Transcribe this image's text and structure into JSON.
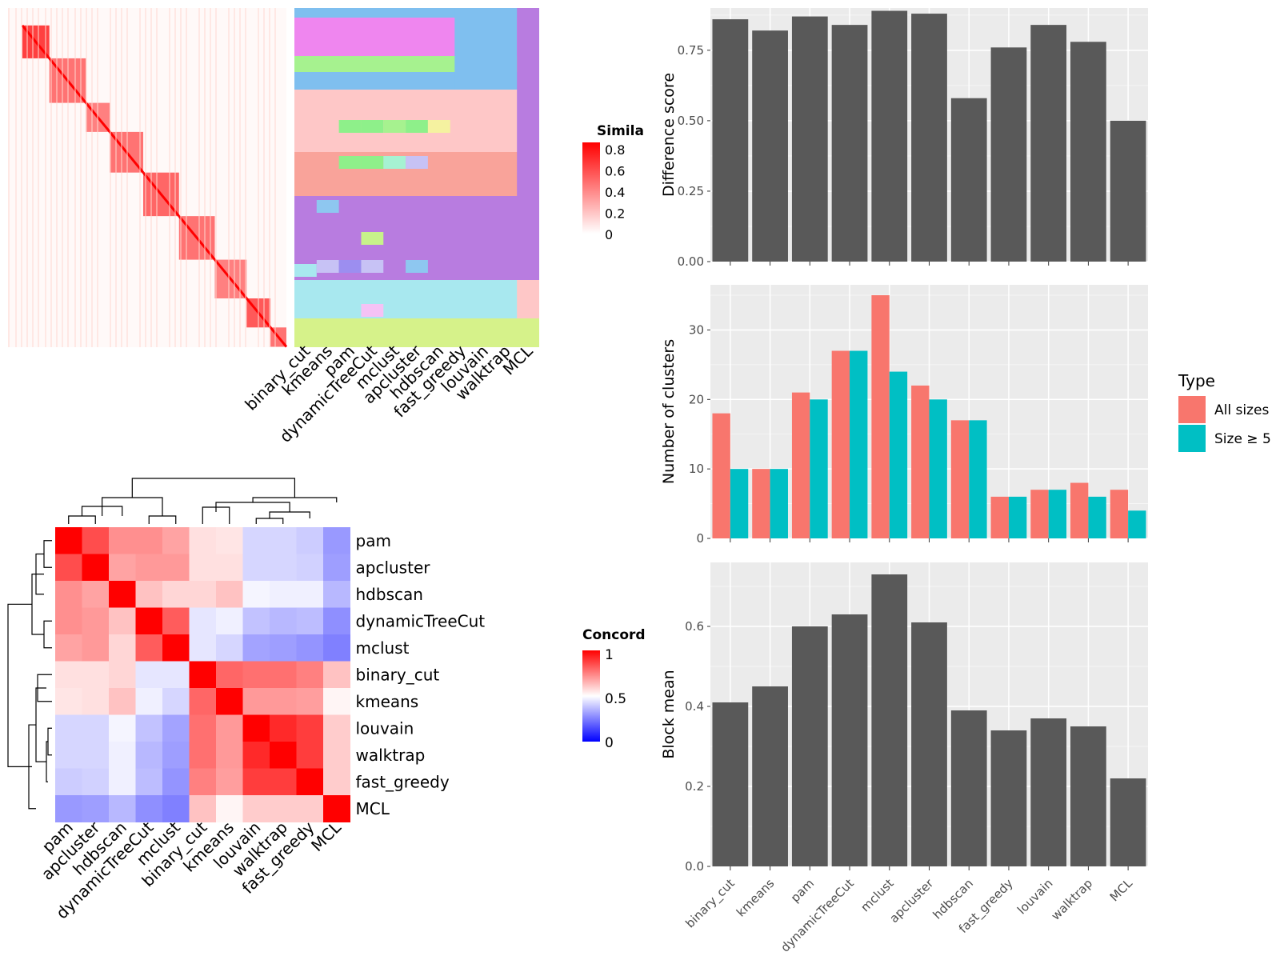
{
  "colors": {
    "bar_fill": "#595959",
    "panel_bg": "#ebebeb",
    "grid": "#ffffff",
    "all_sizes": "#f8766d",
    "size_ge_5": "#00bfc4",
    "concordance_low": "#0000ff",
    "concordance_mid": "#ffffff",
    "concordance_high": "#ff0000",
    "similarity_low": "#ffffff",
    "similarity_high": "#ff0000"
  },
  "similarity_heatmap": {
    "legend_title": "Simila",
    "legend_ticks": [
      "0.8",
      "0.6",
      "0.4",
      "0.2",
      "0"
    ],
    "method_labels": [
      "binary_cut",
      "kmeans",
      "pam",
      "dynamicTreeCut",
      "mclust",
      "apcluster",
      "hdbscan",
      "fast_greedy",
      "louvain",
      "walktrap",
      "MCL"
    ]
  },
  "concordance_heatmap": {
    "legend_title": "Concord",
    "legend_ticks": [
      "1",
      "0.5",
      "0"
    ],
    "row_labels": [
      "pam",
      "apcluster",
      "hdbscan",
      "dynamicTreeCut",
      "mclust",
      "binary_cut",
      "kmeans",
      "louvain",
      "walktrap",
      "fast_greedy",
      "MCL"
    ],
    "col_labels": [
      "pam",
      "apcluster",
      "hdbscan",
      "dynamicTreeCut",
      "mclust",
      "binary_cut",
      "kmeans",
      "louvain",
      "walktrap",
      "fast_greedy",
      "MCL"
    ]
  },
  "chart_data": [
    {
      "type": "heatmap",
      "title": "",
      "legend_title": "Concord",
      "rows": [
        "pam",
        "apcluster",
        "hdbscan",
        "dynamicTreeCut",
        "mclust",
        "binary_cut",
        "kmeans",
        "louvain",
        "walktrap",
        "fast_greedy",
        "MCL"
      ],
      "cols": [
        "pam",
        "apcluster",
        "hdbscan",
        "dynamicTreeCut",
        "mclust",
        "binary_cut",
        "kmeans",
        "louvain",
        "walktrap",
        "fast_greedy",
        "MCL"
      ],
      "values": [
        [
          1.0,
          0.85,
          0.72,
          0.72,
          0.68,
          0.56,
          0.55,
          0.42,
          0.42,
          0.4,
          0.3
        ],
        [
          0.85,
          1.0,
          0.68,
          0.7,
          0.7,
          0.56,
          0.56,
          0.42,
          0.42,
          0.41,
          0.31
        ],
        [
          0.72,
          0.68,
          1.0,
          0.62,
          0.58,
          0.58,
          0.62,
          0.48,
          0.47,
          0.47,
          0.36
        ],
        [
          0.72,
          0.7,
          0.62,
          1.0,
          0.82,
          0.45,
          0.47,
          0.38,
          0.36,
          0.37,
          0.28
        ],
        [
          0.68,
          0.7,
          0.58,
          0.82,
          1.0,
          0.45,
          0.42,
          0.32,
          0.31,
          0.29,
          0.25
        ],
        [
          0.56,
          0.56,
          0.58,
          0.45,
          0.45,
          1.0,
          0.8,
          0.78,
          0.78,
          0.75,
          0.62
        ],
        [
          0.55,
          0.56,
          0.62,
          0.47,
          0.42,
          0.8,
          1.0,
          0.7,
          0.7,
          0.69,
          0.52
        ],
        [
          0.42,
          0.42,
          0.48,
          0.38,
          0.32,
          0.78,
          0.7,
          1.0,
          0.92,
          0.88,
          0.6
        ],
        [
          0.42,
          0.42,
          0.47,
          0.36,
          0.31,
          0.78,
          0.7,
          0.92,
          1.0,
          0.88,
          0.6
        ],
        [
          0.4,
          0.41,
          0.47,
          0.37,
          0.29,
          0.75,
          0.69,
          0.88,
          0.88,
          1.0,
          0.6
        ],
        [
          0.3,
          0.31,
          0.36,
          0.28,
          0.25,
          0.62,
          0.52,
          0.6,
          0.6,
          0.6,
          1.0
        ]
      ],
      "range": [
        0,
        1
      ]
    },
    {
      "type": "bar",
      "categories": [
        "binary_cut",
        "kmeans",
        "pam",
        "dynamicTreeCut",
        "mclust",
        "apcluster",
        "hdbscan",
        "fast_greedy",
        "louvain",
        "walktrap",
        "MCL"
      ],
      "values": [
        0.86,
        0.82,
        0.87,
        0.84,
        0.89,
        0.88,
        0.58,
        0.76,
        0.84,
        0.78,
        0.5
      ],
      "xlabel": "",
      "ylabel": "Difference score",
      "ylim": [
        0,
        0.9
      ],
      "yticks": [
        "0.00",
        "0.25",
        "0.50",
        "0.75"
      ],
      "grid": true
    },
    {
      "type": "bar",
      "categories": [
        "binary_cut",
        "kmeans",
        "pam",
        "dynamicTreeCut",
        "mclust",
        "apcluster",
        "hdbscan",
        "fast_greedy",
        "louvain",
        "walktrap",
        "MCL"
      ],
      "series": [
        {
          "name": "All sizes",
          "values": [
            18,
            10,
            21,
            27,
            35,
            22,
            17,
            6,
            7,
            8,
            7
          ]
        },
        {
          "name": "Size ≥ 5",
          "values": [
            10,
            10,
            20,
            27,
            24,
            20,
            17,
            6,
            7,
            6,
            4
          ]
        }
      ],
      "xlabel": "",
      "ylabel": "Number of clusters",
      "ylim": [
        0,
        36.5
      ],
      "yticks": [
        "0",
        "10",
        "20",
        "30"
      ],
      "legend_title": "Type",
      "legend_position": "right",
      "grid": true
    },
    {
      "type": "bar",
      "categories": [
        "binary_cut",
        "kmeans",
        "pam",
        "dynamicTreeCut",
        "mclust",
        "apcluster",
        "hdbscan",
        "fast_greedy",
        "louvain",
        "walktrap",
        "MCL"
      ],
      "values": [
        0.41,
        0.45,
        0.6,
        0.63,
        0.73,
        0.61,
        0.39,
        0.34,
        0.37,
        0.35,
        0.22
      ],
      "xlabel": "",
      "ylabel": "Block mean",
      "ylim": [
        0,
        0.76
      ],
      "yticks": [
        "0.0",
        "0.2",
        "0.4",
        "0.6"
      ],
      "grid": true
    }
  ]
}
